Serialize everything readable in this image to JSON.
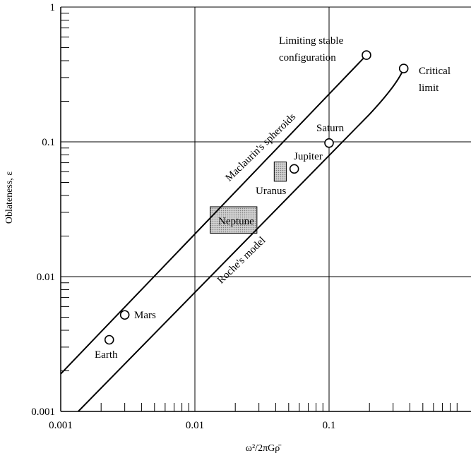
{
  "chart_data": {
    "type": "scatter",
    "xscale": "log",
    "yscale": "log",
    "xlim": [
      0.001,
      1
    ],
    "ylim": [
      0.001,
      1
    ],
    "grid": true,
    "xlabel": "ω²/2πGρ̄",
    "ylabel": "Oblateness, ε",
    "x_ticks": [
      {
        "v": 0.001,
        "label": "0.001"
      },
      {
        "v": 0.01,
        "label": "0.01"
      },
      {
        "v": 0.1,
        "label": "0.1"
      }
    ],
    "y_ticks": [
      {
        "v": 0.001,
        "label": "0.001"
      },
      {
        "v": 0.01,
        "label": "0.01"
      },
      {
        "v": 0.1,
        "label": "0.1"
      },
      {
        "v": 1,
        "label": "1"
      }
    ],
    "series": [
      {
        "name": "Maclaurin's spheroids",
        "kind": "line",
        "points": [
          [
            0.001,
            0.0019
          ],
          [
            0.19,
            0.44
          ]
        ],
        "end_marker": {
          "x": 0.19,
          "y": 0.44,
          "label": "Limiting stable\nconfiguration"
        }
      },
      {
        "name": "Roche's model",
        "kind": "line",
        "points": [
          [
            0.00135,
            0.001
          ],
          [
            0.2,
            0.16
          ],
          [
            0.3,
            0.26
          ],
          [
            0.36,
            0.35
          ]
        ],
        "end_marker": {
          "x": 0.36,
          "y": 0.35,
          "label": "Critical\nlimit"
        }
      }
    ],
    "planets": [
      {
        "name": "Earth",
        "x": 0.0023,
        "y": 0.0034
      },
      {
        "name": "Mars",
        "x": 0.003,
        "y": 0.0052
      },
      {
        "name": "Jupiter",
        "x": 0.055,
        "y": 0.063
      },
      {
        "name": "Saturn",
        "x": 0.1,
        "y": 0.098
      }
    ],
    "regions": [
      {
        "name": "Uranus",
        "x": [
          0.039,
          0.048
        ],
        "y": [
          0.051,
          0.071
        ]
      },
      {
        "name": "Neptune",
        "x": [
          0.013,
          0.029
        ],
        "y": [
          0.021,
          0.033
        ]
      }
    ]
  }
}
